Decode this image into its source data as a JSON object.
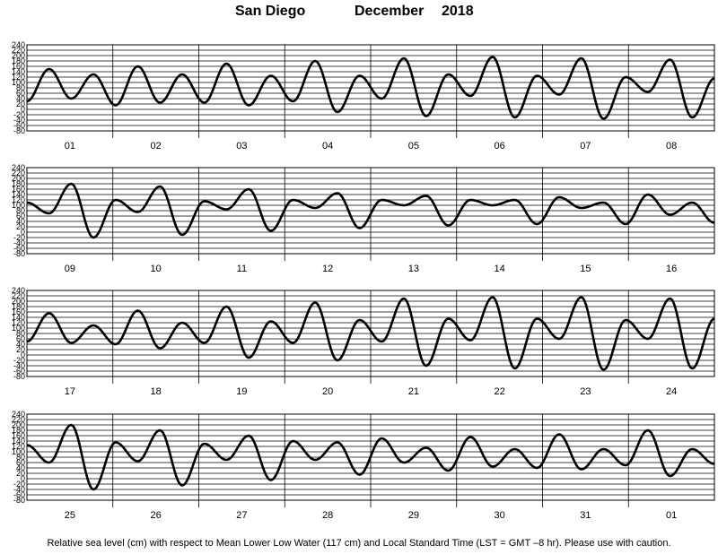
{
  "header": {
    "station": "San Diego",
    "month": "December",
    "year": "2018"
  },
  "footer": {
    "note": "Relative sea level (cm) with respect to Mean Lower Low Water (117 cm) and Local Standard Time (LST = GMT –8 hr). Please use with caution."
  },
  "chart_data": {
    "type": "line",
    "title": "San Diego December 2018",
    "ylabel": "Relative sea level (cm)",
    "xlabel": "",
    "ylim": [
      -80,
      240
    ],
    "yticks": [
      240,
      220,
      200,
      180,
      160,
      140,
      120,
      100,
      80,
      60,
      40,
      20,
      0,
      -20,
      -40,
      -60,
      -80
    ],
    "grid": true,
    "panels": [
      {
        "days": [
          "01",
          "02",
          "03",
          "04",
          "05",
          "06",
          "07",
          "08"
        ],
        "series": [
          {
            "values": [
              30,
              150,
              40,
              130,
              15,
              160,
              25,
              130,
              25,
              170,
              15,
              125,
              30,
              180,
              -10,
              125,
              40,
              190,
              -25,
              130,
              50,
              195,
              -30,
              125,
              55,
              190,
              -35,
              120,
              65,
              185,
              -30,
              115
            ]
          }
        ]
      },
      {
        "days": [
          "09",
          "10",
          "11",
          "12",
          "13",
          "14",
          "15",
          "16"
        ],
        "series": [
          {
            "values": [
              110,
              70,
              180,
              -20,
              120,
              75,
              170,
              -10,
              115,
              85,
              160,
              5,
              120,
              90,
              145,
              15,
              120,
              100,
              135,
              25,
              120,
              100,
              120,
              30,
              130,
              90,
              110,
              30,
              140,
              65,
              110,
              35
            ]
          }
        ]
      },
      {
        "days": [
          "17",
          "18",
          "19",
          "20",
          "21",
          "22",
          "23",
          "24"
        ],
        "series": [
          {
            "values": [
              50,
              155,
              45,
              110,
              40,
              165,
              25,
              120,
              45,
              180,
              -10,
              125,
              45,
              195,
              -20,
              130,
              50,
              210,
              -40,
              135,
              55,
              215,
              -50,
              135,
              60,
              215,
              -55,
              130,
              60,
              210,
              -50,
              135
            ]
          }
        ]
      },
      {
        "days": [
          "25",
          "26",
          "27",
          "28",
          "29",
          "30",
          "31",
          "01"
        ],
        "series": [
          {
            "values": [
              125,
              60,
              200,
              -40,
              135,
              65,
              180,
              -25,
              130,
              70,
              160,
              -5,
              140,
              70,
              135,
              15,
              150,
              60,
              115,
              30,
              155,
              45,
              110,
              40,
              165,
              35,
              110,
              50,
              180,
              10,
              110,
              55
            ]
          }
        ]
      }
    ]
  }
}
